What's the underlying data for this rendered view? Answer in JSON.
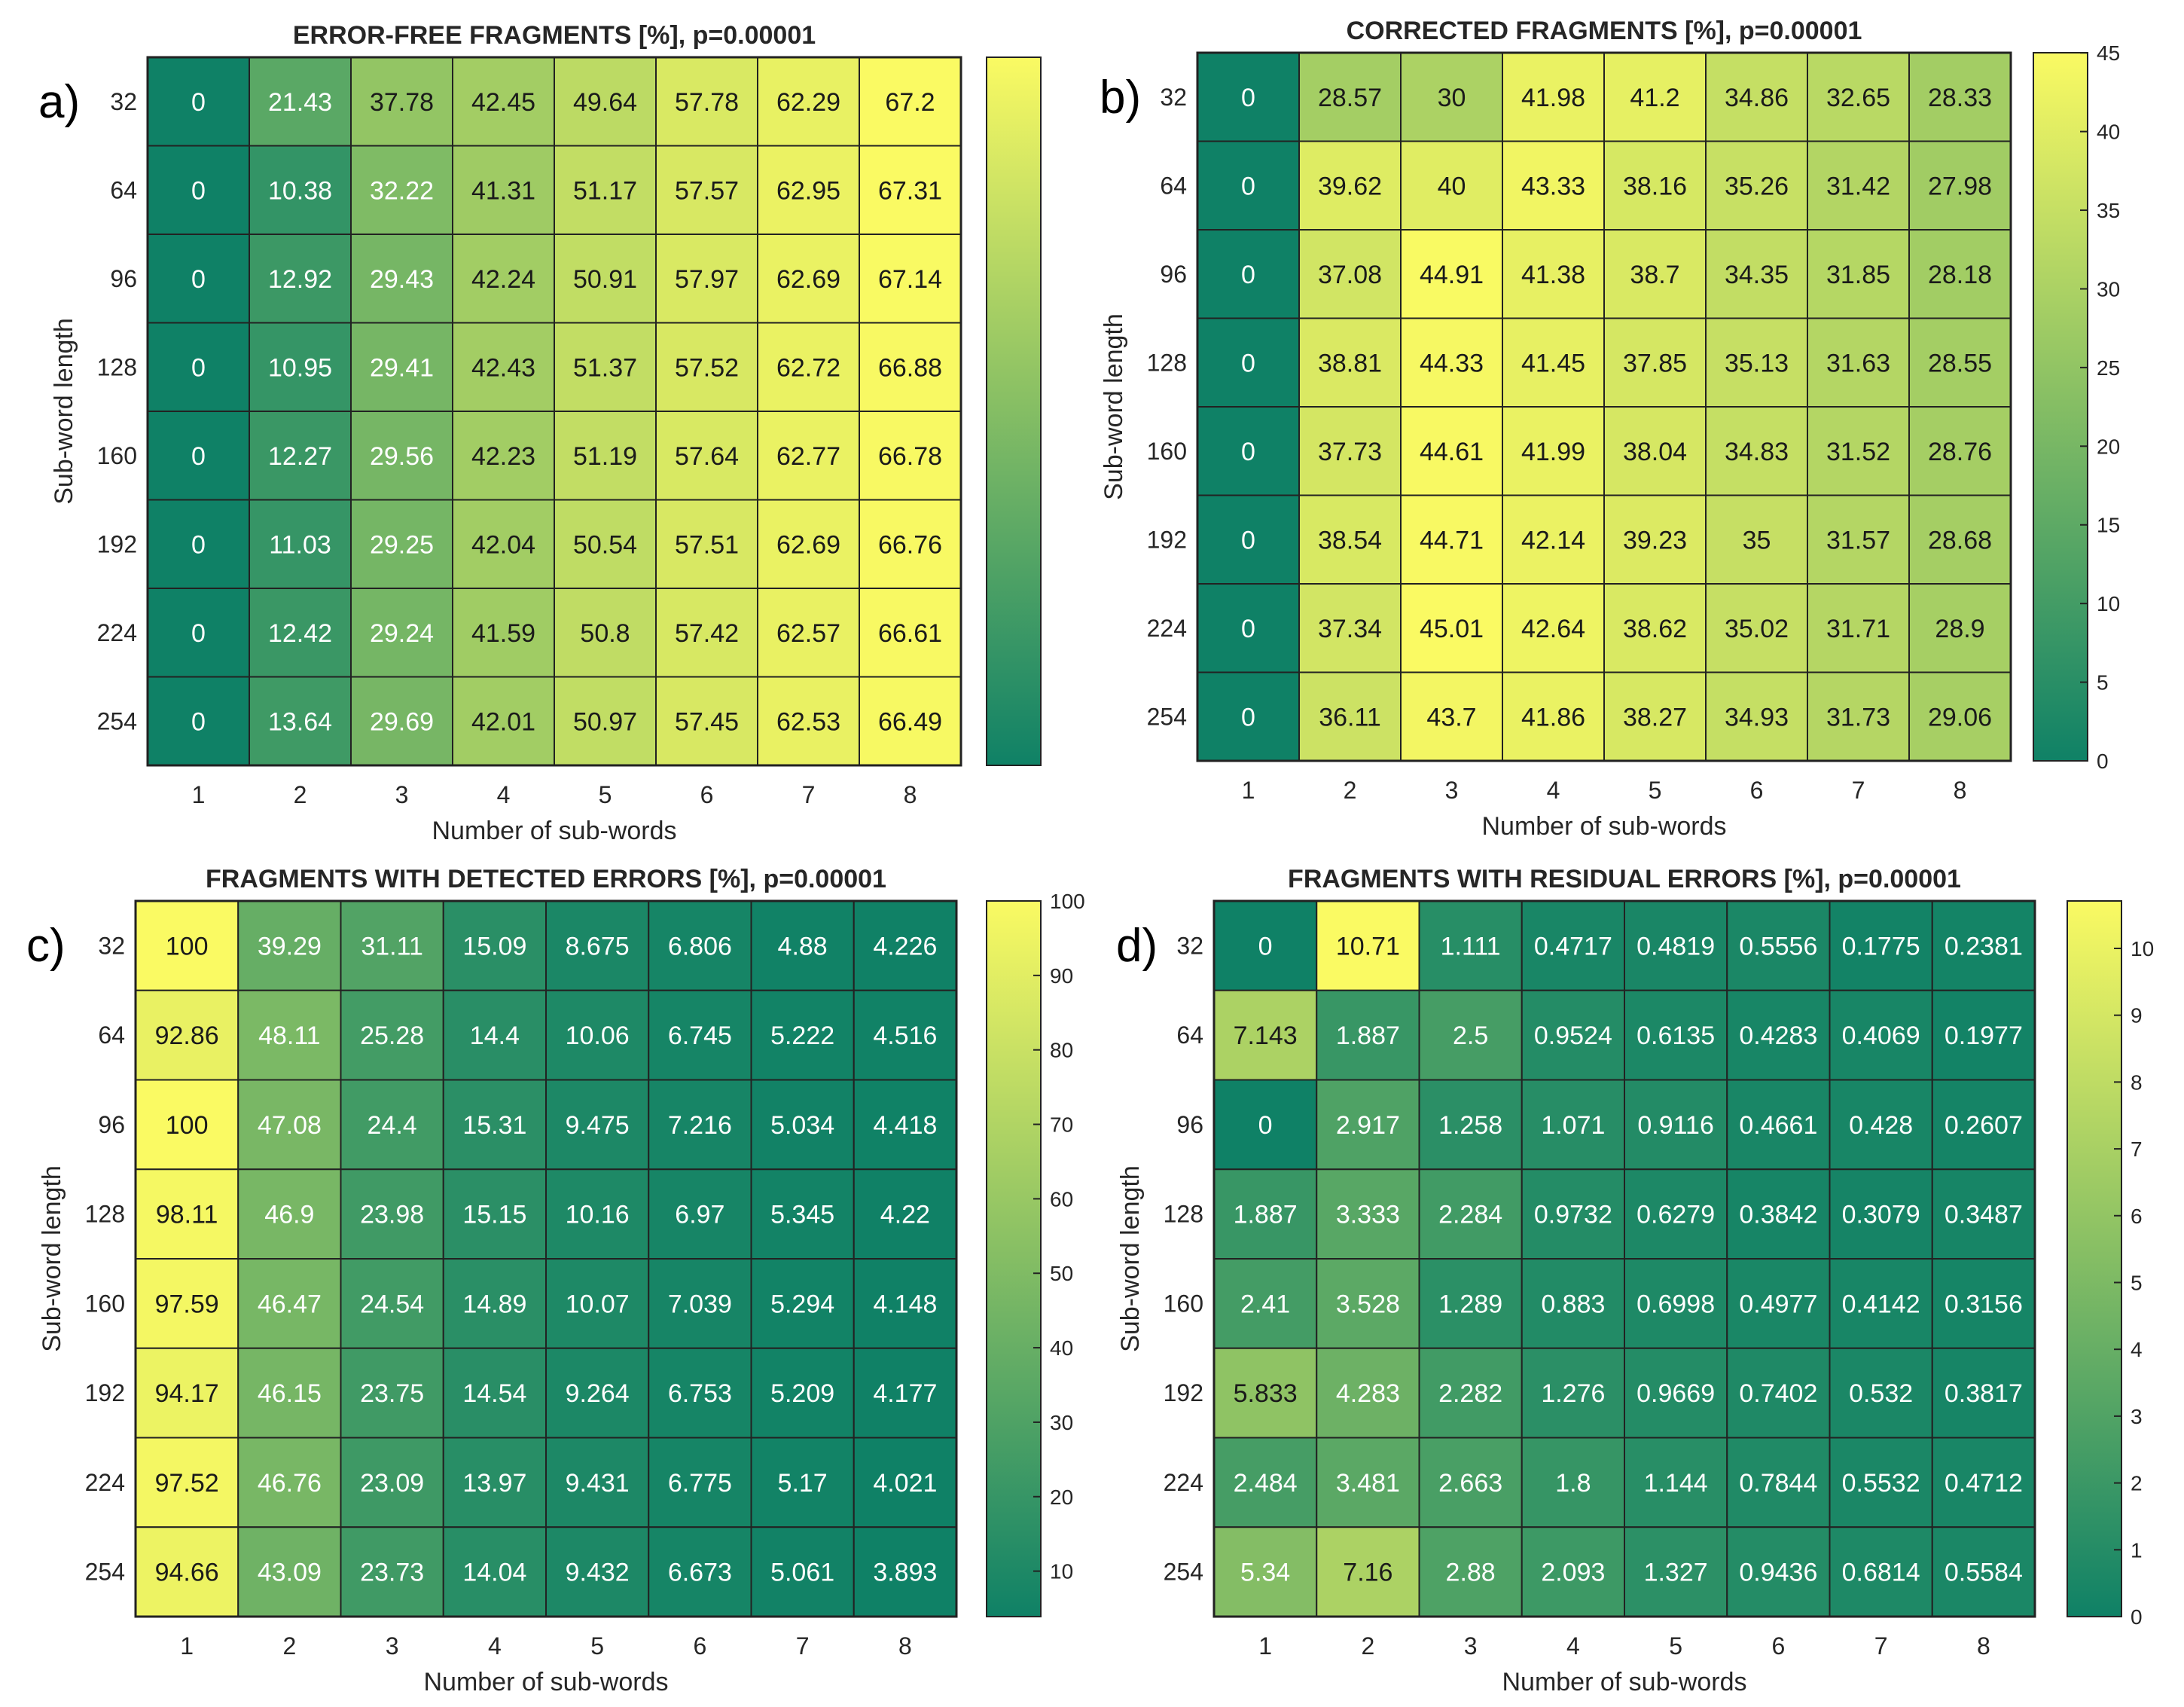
{
  "colors": {
    "low": "#0f8166",
    "high": "#fafa63",
    "grid": "#222222",
    "text_dark": "#1a1a1a",
    "text_light": "#ffffff"
  },
  "chart_data": [
    {
      "id": "a",
      "type": "heatmap",
      "letter": "a)",
      "title": "ERROR-FREE FRAGMENTS [%], p=0.00001",
      "xlabel": "Number of sub-words",
      "ylabel": "Sub-word length",
      "x": [
        "1",
        "2",
        "3",
        "4",
        "5",
        "6",
        "7",
        "8"
      ],
      "y": [
        "32",
        "64",
        "96",
        "128",
        "160",
        "192",
        "224",
        "254"
      ],
      "values": [
        [
          "0",
          "21.43",
          "37.78",
          "42.45",
          "49.64",
          "57.78",
          "62.29",
          "67.2"
        ],
        [
          "0",
          "10.38",
          "32.22",
          "41.31",
          "51.17",
          "57.57",
          "62.95",
          "67.31"
        ],
        [
          "0",
          "12.92",
          "29.43",
          "42.24",
          "50.91",
          "57.97",
          "62.69",
          "67.14"
        ],
        [
          "0",
          "10.95",
          "29.41",
          "42.43",
          "51.37",
          "57.52",
          "62.72",
          "66.88"
        ],
        [
          "0",
          "12.27",
          "29.56",
          "42.23",
          "51.19",
          "57.64",
          "62.77",
          "66.78"
        ],
        [
          "0",
          "11.03",
          "29.25",
          "42.04",
          "50.54",
          "57.51",
          "62.69",
          "66.76"
        ],
        [
          "0",
          "12.42",
          "29.24",
          "41.59",
          "50.8",
          "57.42",
          "62.57",
          "66.61"
        ],
        [
          "0",
          "13.64",
          "29.69",
          "42.01",
          "50.97",
          "57.45",
          "62.53",
          "66.49"
        ]
      ],
      "clim": [
        0,
        67.31
      ],
      "colorbar_ticks": []
    },
    {
      "id": "b",
      "type": "heatmap",
      "letter": "b)",
      "title": "CORRECTED FRAGMENTS [%], p=0.00001",
      "xlabel": "Number of sub-words",
      "ylabel": "Sub-word length",
      "x": [
        "1",
        "2",
        "3",
        "4",
        "5",
        "6",
        "7",
        "8"
      ],
      "y": [
        "32",
        "64",
        "96",
        "128",
        "160",
        "192",
        "224",
        "254"
      ],
      "values": [
        [
          "0",
          "28.57",
          "30",
          "41.98",
          "41.2",
          "34.86",
          "32.65",
          "28.33"
        ],
        [
          "0",
          "39.62",
          "40",
          "43.33",
          "38.16",
          "35.26",
          "31.42",
          "27.98"
        ],
        [
          "0",
          "37.08",
          "44.91",
          "41.38",
          "38.7",
          "34.35",
          "31.85",
          "28.18"
        ],
        [
          "0",
          "38.81",
          "44.33",
          "41.45",
          "37.85",
          "35.13",
          "31.63",
          "28.55"
        ],
        [
          "0",
          "37.73",
          "44.61",
          "41.99",
          "38.04",
          "34.83",
          "31.52",
          "28.76"
        ],
        [
          "0",
          "38.54",
          "44.71",
          "42.14",
          "39.23",
          "35",
          "31.57",
          "28.68"
        ],
        [
          "0",
          "37.34",
          "45.01",
          "42.64",
          "38.62",
          "35.02",
          "31.71",
          "28.9"
        ],
        [
          "0",
          "36.11",
          "43.7",
          "41.86",
          "38.27",
          "34.93",
          "31.73",
          "29.06"
        ]
      ],
      "clim": [
        0,
        45.01
      ],
      "colorbar_ticks": [
        "0",
        "5",
        "10",
        "15",
        "20",
        "25",
        "30",
        "35",
        "40",
        "45"
      ]
    },
    {
      "id": "c",
      "type": "heatmap",
      "letter": "c)",
      "title": "FRAGMENTS WITH DETECTED ERRORS [%], p=0.00001",
      "xlabel": "Number of sub-words",
      "ylabel": "Sub-word length",
      "x": [
        "1",
        "2",
        "3",
        "4",
        "5",
        "6",
        "7",
        "8"
      ],
      "y": [
        "32",
        "64",
        "96",
        "128",
        "160",
        "192",
        "224",
        "254"
      ],
      "values": [
        [
          "100",
          "39.29",
          "31.11",
          "15.09",
          "8.675",
          "6.806",
          "4.88",
          "4.226"
        ],
        [
          "92.86",
          "48.11",
          "25.28",
          "14.4",
          "10.06",
          "6.745",
          "5.222",
          "4.516"
        ],
        [
          "100",
          "47.08",
          "24.4",
          "15.31",
          "9.475",
          "7.216",
          "5.034",
          "4.418"
        ],
        [
          "98.11",
          "46.9",
          "23.98",
          "15.15",
          "10.16",
          "6.97",
          "5.345",
          "4.22"
        ],
        [
          "97.59",
          "46.47",
          "24.54",
          "14.89",
          "10.07",
          "7.039",
          "5.294",
          "4.148"
        ],
        [
          "94.17",
          "46.15",
          "23.75",
          "14.54",
          "9.264",
          "6.753",
          "5.209",
          "4.177"
        ],
        [
          "97.52",
          "46.76",
          "23.09",
          "13.97",
          "9.431",
          "6.775",
          "5.17",
          "4.021"
        ],
        [
          "94.66",
          "43.09",
          "23.73",
          "14.04",
          "9.432",
          "6.673",
          "5.061",
          "3.893"
        ]
      ],
      "clim": [
        3.893,
        100
      ],
      "colorbar_ticks": [
        "10",
        "20",
        "30",
        "40",
        "50",
        "60",
        "70",
        "80",
        "90",
        "100"
      ]
    },
    {
      "id": "d",
      "type": "heatmap",
      "letter": "d)",
      "title": "FRAGMENTS WITH RESIDUAL ERRORS [%], p=0.00001",
      "xlabel": "Number of sub-words",
      "ylabel": "Sub-word length",
      "x": [
        "1",
        "2",
        "3",
        "4",
        "5",
        "6",
        "7",
        "8"
      ],
      "y": [
        "32",
        "64",
        "96",
        "128",
        "160",
        "192",
        "224",
        "254"
      ],
      "values": [
        [
          "0",
          "10.71",
          "1.111",
          "0.4717",
          "0.4819",
          "0.5556",
          "0.1775",
          "0.2381"
        ],
        [
          "7.143",
          "1.887",
          "2.5",
          "0.9524",
          "0.6135",
          "0.4283",
          "0.4069",
          "0.1977"
        ],
        [
          "0",
          "2.917",
          "1.258",
          "1.071",
          "0.9116",
          "0.4661",
          "0.428",
          "0.2607"
        ],
        [
          "1.887",
          "3.333",
          "2.284",
          "0.9732",
          "0.6279",
          "0.3842",
          "0.3079",
          "0.3487"
        ],
        [
          "2.41",
          "3.528",
          "1.289",
          "0.883",
          "0.6998",
          "0.4977",
          "0.4142",
          "0.3156"
        ],
        [
          "5.833",
          "4.283",
          "2.282",
          "1.276",
          "0.9669",
          "0.7402",
          "0.532",
          "0.3817"
        ],
        [
          "2.484",
          "3.481",
          "2.663",
          "1.8",
          "1.144",
          "0.7844",
          "0.5532",
          "0.4712"
        ],
        [
          "5.34",
          "7.16",
          "2.88",
          "2.093",
          "1.327",
          "0.9436",
          "0.6814",
          "0.5584"
        ]
      ],
      "clim": [
        0,
        10.71
      ],
      "colorbar_ticks": [
        "0",
        "1",
        "2",
        "3",
        "4",
        "5",
        "6",
        "7",
        "8",
        "9",
        "10"
      ]
    }
  ]
}
